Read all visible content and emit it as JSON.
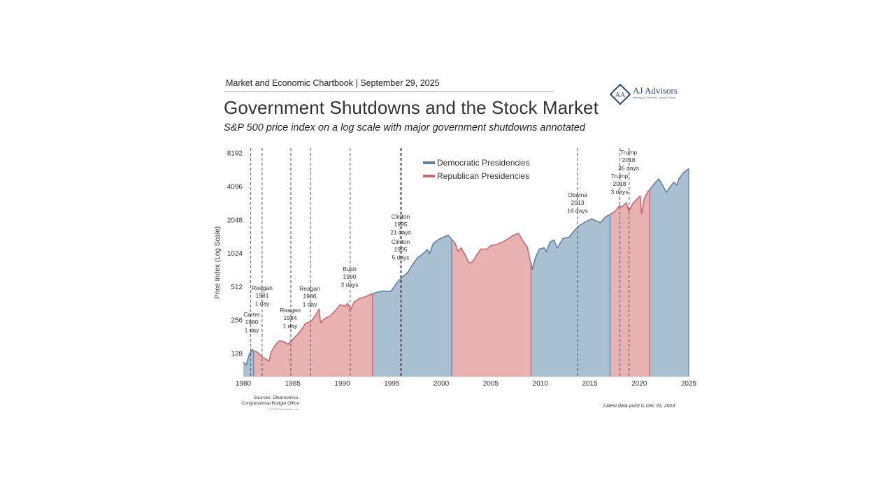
{
  "header": {
    "chartbook": "Market and Economic Chartbook | September 29, 2025",
    "title": "Government Shutdowns and the Stock Market",
    "subtitle": "S&P 500 price index on a log scale with major government shutdowns annotated"
  },
  "logo": {
    "name": "AJ Advisors",
    "tagline": "Planning for Tomorrow, Living for Today"
  },
  "footer": {
    "sources_line1": "Sources: Clearnomics,",
    "sources_line2": "Congressional Budget Office",
    "copyright": "© 2025 Clearnomics, Inc.",
    "latest": "Latest data point is Dec 31, 2024"
  },
  "colors": {
    "democratic_fill": "#a9bfd2",
    "democratic_line": "#5d82a8",
    "republican_fill": "#e8b1b2",
    "republican_line": "#d06468",
    "grid": "#555555"
  },
  "chart_data": {
    "type": "area",
    "scale": "log2",
    "ylabel": "Price Index (Log Scale)",
    "xlim": [
      1980,
      2025
    ],
    "ylim": [
      90,
      9000
    ],
    "x_ticks": [
      1980,
      1985,
      1990,
      1995,
      2000,
      2005,
      2010,
      2015,
      2020,
      2025
    ],
    "y_ticks": [
      128,
      256,
      512,
      1024,
      2048,
      4096,
      8192
    ],
    "legend": {
      "position": "top-center",
      "items": [
        {
          "label": "Democratic Presidencies",
          "party": "D"
        },
        {
          "label": "Republican Presidencies",
          "party": "R"
        }
      ]
    },
    "presidencies": [
      {
        "start": 1980.0,
        "end": 1981.05,
        "party": "D"
      },
      {
        "start": 1981.05,
        "end": 1993.05,
        "party": "R"
      },
      {
        "start": 1993.05,
        "end": 2001.05,
        "party": "D"
      },
      {
        "start": 2001.05,
        "end": 2009.05,
        "party": "R"
      },
      {
        "start": 2009.05,
        "end": 2017.05,
        "party": "D"
      },
      {
        "start": 2017.05,
        "end": 2021.05,
        "party": "R"
      },
      {
        "start": 2021.05,
        "end": 2025.0,
        "party": "D"
      }
    ],
    "series": [
      {
        "name": "S&P 500",
        "points": [
          [
            1980.0,
            106
          ],
          [
            1980.3,
            100
          ],
          [
            1980.6,
            125
          ],
          [
            1980.9,
            138
          ],
          [
            1981.05,
            134
          ],
          [
            1981.4,
            131
          ],
          [
            1981.8,
            120
          ],
          [
            1982.2,
            114
          ],
          [
            1982.6,
            108
          ],
          [
            1982.8,
            130
          ],
          [
            1983.2,
            150
          ],
          [
            1983.6,
            165
          ],
          [
            1984.0,
            164
          ],
          [
            1984.5,
            154
          ],
          [
            1984.9,
            166
          ],
          [
            1985.5,
            190
          ],
          [
            1985.9,
            210
          ],
          [
            1986.3,
            238
          ],
          [
            1986.7,
            245
          ],
          [
            1986.9,
            250
          ],
          [
            1987.4,
            290
          ],
          [
            1987.65,
            320
          ],
          [
            1987.8,
            240
          ],
          [
            1988.2,
            262
          ],
          [
            1988.8,
            278
          ],
          [
            1989.3,
            310
          ],
          [
            1989.8,
            350
          ],
          [
            1990.3,
            340
          ],
          [
            1990.55,
            360
          ],
          [
            1990.8,
            310
          ],
          [
            1991.2,
            370
          ],
          [
            1991.8,
            400
          ],
          [
            1992.4,
            415
          ],
          [
            1993.05,
            440
          ],
          [
            1993.6,
            455
          ],
          [
            1994.2,
            465
          ],
          [
            1994.9,
            460
          ],
          [
            1995.5,
            550
          ],
          [
            1996.0,
            615
          ],
          [
            1996.6,
            680
          ],
          [
            1997.0,
            780
          ],
          [
            1997.6,
            930
          ],
          [
            1998.0,
            980
          ],
          [
            1998.6,
            1100
          ],
          [
            1998.8,
            1000
          ],
          [
            1999.2,
            1250
          ],
          [
            1999.7,
            1350
          ],
          [
            2000.2,
            1420
          ],
          [
            2000.7,
            1480
          ],
          [
            2001.05,
            1360
          ],
          [
            2001.4,
            1250
          ],
          [
            2001.7,
            1050
          ],
          [
            2002.0,
            1140
          ],
          [
            2002.5,
            950
          ],
          [
            2002.8,
            830
          ],
          [
            2003.2,
            860
          ],
          [
            2003.6,
            990
          ],
          [
            2004.0,
            1110
          ],
          [
            2004.6,
            1110
          ],
          [
            2005.0,
            1190
          ],
          [
            2005.7,
            1230
          ],
          [
            2006.3,
            1300
          ],
          [
            2006.8,
            1380
          ],
          [
            2007.3,
            1480
          ],
          [
            2007.8,
            1540
          ],
          [
            2008.2,
            1330
          ],
          [
            2008.7,
            1150
          ],
          [
            2008.95,
            890
          ],
          [
            2009.05,
            840
          ],
          [
            2009.2,
            730
          ],
          [
            2009.5,
            920
          ],
          [
            2009.9,
            1110
          ],
          [
            2010.4,
            1140
          ],
          [
            2010.6,
            1050
          ],
          [
            2011.0,
            1290
          ],
          [
            2011.4,
            1340
          ],
          [
            2011.7,
            1130
          ],
          [
            2012.3,
            1380
          ],
          [
            2012.9,
            1420
          ],
          [
            2013.5,
            1650
          ],
          [
            2014.0,
            1820
          ],
          [
            2014.6,
            1960
          ],
          [
            2015.2,
            2080
          ],
          [
            2015.7,
            1980
          ],
          [
            2016.1,
            1920
          ],
          [
            2016.6,
            2170
          ],
          [
            2017.05,
            2280
          ],
          [
            2017.6,
            2450
          ],
          [
            2018.0,
            2720
          ],
          [
            2018.2,
            2650
          ],
          [
            2018.7,
            2900
          ],
          [
            2018.95,
            2450
          ],
          [
            2019.4,
            2900
          ],
          [
            2019.9,
            3200
          ],
          [
            2020.1,
            3350
          ],
          [
            2020.23,
            2300
          ],
          [
            2020.5,
            3150
          ],
          [
            2020.9,
            3700
          ],
          [
            2021.05,
            3800
          ],
          [
            2021.5,
            4300
          ],
          [
            2021.99,
            4760
          ],
          [
            2022.4,
            4100
          ],
          [
            2022.75,
            3600
          ],
          [
            2023.0,
            3900
          ],
          [
            2023.5,
            4450
          ],
          [
            2023.8,
            4200
          ],
          [
            2024.0,
            4760
          ],
          [
            2024.5,
            5450
          ],
          [
            2024.99,
            5880
          ]
        ]
      }
    ],
    "shutdowns": [
      {
        "year": 1980.75,
        "label": [
          "Carter",
          "1980",
          "1 day"
        ]
      },
      {
        "year": 1981.9,
        "label": [
          "Reagan",
          "1981",
          "1 day"
        ]
      },
      {
        "year": 1984.8,
        "label": [
          "Reagan",
          "1984",
          "1 day"
        ]
      },
      {
        "year": 1986.8,
        "label": [
          "Reagan",
          "1986",
          "1 day"
        ]
      },
      {
        "year": 1990.8,
        "label": [
          "Bush",
          "1990",
          "3 days"
        ]
      },
      {
        "year": 1995.88,
        "label": [
          "Clinton",
          "1995",
          "5 days"
        ]
      },
      {
        "year": 1995.98,
        "label": [
          "Clinton",
          "1995",
          "21 days"
        ]
      },
      {
        "year": 2013.75,
        "label": [
          "Obama",
          "2013",
          "16 days"
        ]
      },
      {
        "year": 2018.05,
        "label": [
          "Trump",
          "2018",
          "3 days"
        ]
      },
      {
        "year": 2018.98,
        "label": [
          "Trump",
          "2018",
          "35 days"
        ]
      }
    ]
  }
}
